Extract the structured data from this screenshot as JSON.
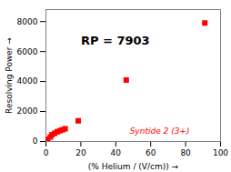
{
  "chart_data": {
    "type": "scatter",
    "x": [
      1.0,
      2.5,
      3.5,
      5.0,
      6.5,
      8.0,
      9.5,
      11.0,
      18.5,
      46.0,
      91.0
    ],
    "values": [
      150,
      300,
      450,
      550,
      650,
      720,
      780,
      850,
      1380,
      4100,
      7903
    ],
    "color": "#ff0000",
    "marker": "square",
    "xlabel": "(% Helium / (V/cm))",
    "ylabel": "Resolving Power",
    "xlim": [
      0,
      100
    ],
    "ylim": [
      0,
      8800
    ],
    "xticks": [
      0,
      20,
      40,
      60,
      80,
      100
    ],
    "yticks": [
      0,
      2000,
      4000,
      6000,
      8000
    ],
    "grid": false,
    "annotations": [
      {
        "text": "RP = 7903",
        "x": 20,
        "y": 6700
      },
      {
        "text": "Syntide 2 (3+)",
        "x": 48,
        "y": 700,
        "color": "#ff0000"
      }
    ]
  }
}
